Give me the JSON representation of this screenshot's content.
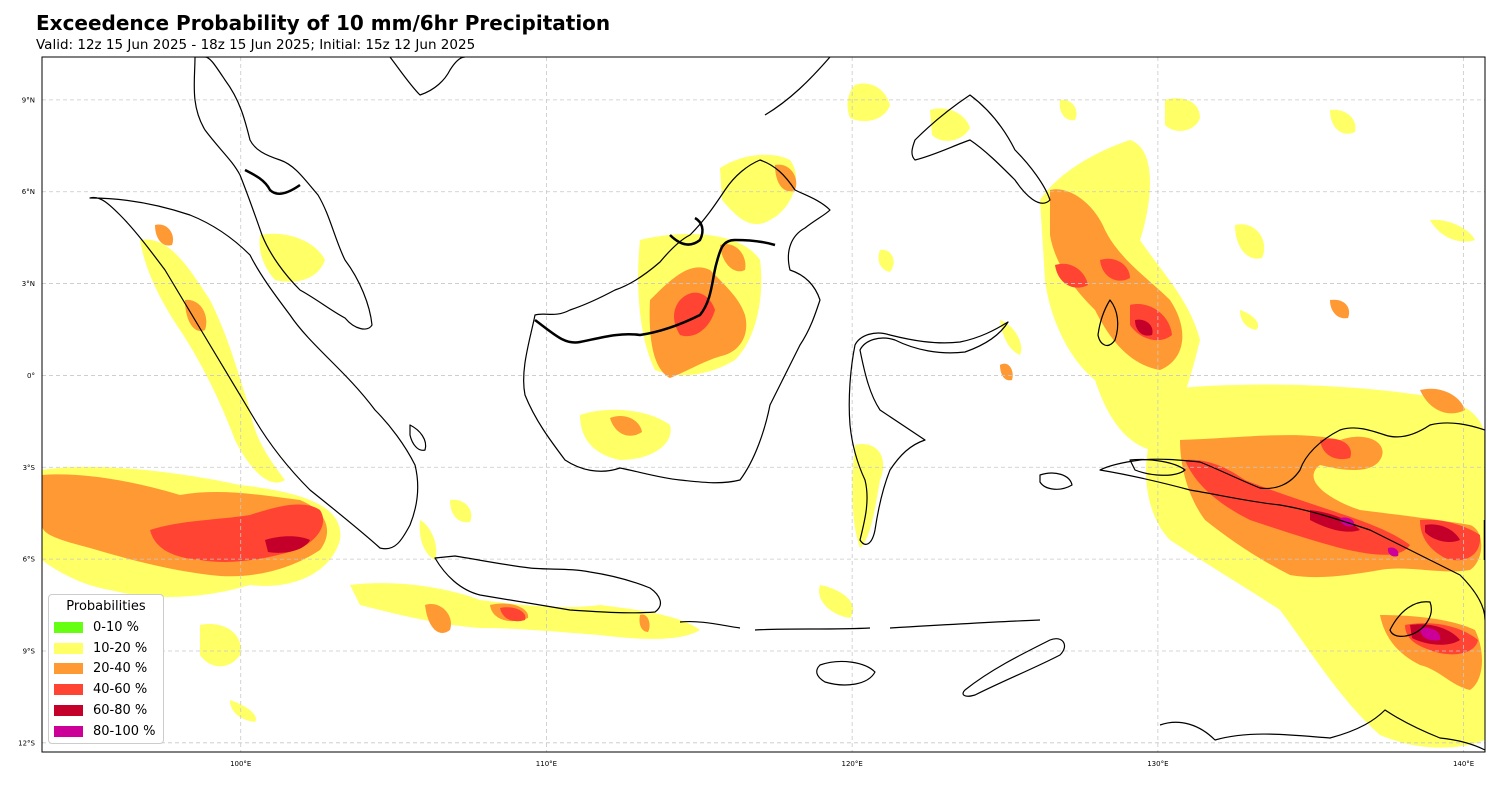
{
  "title": "Exceedence Probability of 10 mm/6hr Precipitation",
  "subtitle": "Valid: 12z 15 Jun 2025 - 18z 15 Jun 2025; Initial: 15z 12 Jun 2025",
  "map": {
    "extent": {
      "lon": [
        93.5,
        140.7
      ],
      "lat": [
        -12.3,
        10.4
      ]
    },
    "lon_ticks": [
      {
        "lon": 100,
        "label": "100°E"
      },
      {
        "lon": 110,
        "label": "110°E"
      },
      {
        "lon": 120,
        "label": "120°E"
      },
      {
        "lon": 130,
        "label": "130°E"
      },
      {
        "lon": 140,
        "label": "140°E"
      }
    ],
    "lat_ticks": [
      {
        "lat": 9,
        "label": "9°N"
      },
      {
        "lat": 6,
        "label": "6°N"
      },
      {
        "lat": 3,
        "label": "3°N"
      },
      {
        "lat": 0,
        "label": "0°"
      },
      {
        "lat": -3,
        "label": "3°S"
      },
      {
        "lat": -6,
        "label": "6°S"
      },
      {
        "lat": -9,
        "label": "9°S"
      },
      {
        "lat": -12,
        "label": "12°S"
      }
    ],
    "gridlines": true,
    "colors": {
      "coast": "#000000",
      "border": "#000000",
      "grid": "#c8c8c8"
    }
  },
  "legend": {
    "title": "Probabilities",
    "position": "lower-left",
    "items": [
      {
        "label": "0-10 %",
        "color": "#66ff11"
      },
      {
        "label": "10-20 %",
        "color": "#ffff66"
      },
      {
        "label": "20-40 %",
        "color": "#ff9933"
      },
      {
        "label": "40-60 %",
        "color": "#ff4433"
      },
      {
        "label": "60-80 %",
        "color": "#c4002a"
      },
      {
        "label": "80-100 %",
        "color": "#cc0099"
      }
    ]
  }
}
